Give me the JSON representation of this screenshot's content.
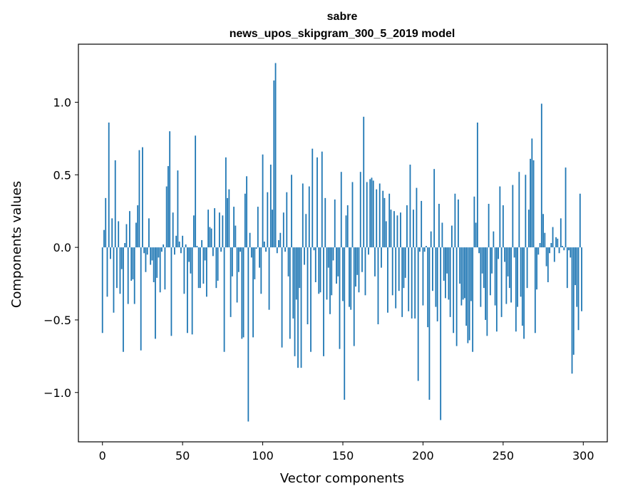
{
  "chart_data": {
    "type": "bar",
    "title": "sabre",
    "subtitle": "news_upos_skipgram_300_5_2019 model",
    "xlabel": "Vector components",
    "ylabel": "Components values",
    "xlim": [
      -15,
      315
    ],
    "ylim": [
      -1.34,
      1.4
    ],
    "xticks": [
      0,
      50,
      100,
      150,
      200,
      250,
      300
    ],
    "xtick_labels": [
      "0",
      "50",
      "100",
      "150",
      "200",
      "250",
      "300"
    ],
    "yticks": [
      -1.0,
      -0.5,
      0.0,
      0.5,
      1.0
    ],
    "ytick_labels": [
      "−1.0",
      "−0.5",
      "0.0",
      "0.5",
      "1.0"
    ],
    "bar_color": "#1f77b4",
    "grid": false,
    "values": [
      -0.59,
      0.12,
      0.34,
      -0.34,
      0.86,
      -0.08,
      0.2,
      -0.45,
      0.6,
      -0.28,
      0.18,
      -0.32,
      -0.15,
      -0.72,
      0.03,
      0.16,
      -0.39,
      0.25,
      -0.23,
      -0.22,
      -0.39,
      0.17,
      0.29,
      0.67,
      -0.71,
      0.69,
      -0.04,
      -0.17,
      -0.05,
      0.2,
      -0.12,
      -0.09,
      -0.24,
      -0.63,
      -0.21,
      -0.07,
      -0.31,
      -0.03,
      0.02,
      -0.29,
      0.42,
      0.56,
      0.8,
      -0.61,
      0.24,
      -0.05,
      0.08,
      0.53,
      0.04,
      -0.04,
      0.08,
      -0.32,
      0.02,
      -0.59,
      -0.1,
      -0.18,
      -0.6,
      0.22,
      0.77,
      0.01,
      -0.28,
      -0.28,
      0.05,
      -0.25,
      -0.09,
      -0.34,
      0.26,
      0.14,
      0.13,
      -0.06,
      0.27,
      -0.28,
      -0.23,
      0.24,
      -0.03,
      0.22,
      -0.72,
      0.62,
      0.34,
      0.4,
      -0.48,
      -0.2,
      0.28,
      0.15,
      -0.38,
      -0.17,
      -0.03,
      -0.63,
      -0.62,
      0.37,
      0.49,
      -1.2,
      0.1,
      -0.07,
      -0.62,
      -0.22,
      -0.01,
      0.28,
      -0.14,
      -0.32,
      0.64,
      0.04,
      -0.03,
      0.38,
      -0.43,
      0.57,
      0.26,
      1.15,
      1.27,
      -0.04,
      0.05,
      0.1,
      -0.69,
      0.24,
      -0.03,
      0.38,
      -0.2,
      -0.63,
      0.5,
      -0.49,
      -0.75,
      -0.36,
      -0.83,
      -0.28,
      -0.83,
      0.44,
      -0.12,
      0.23,
      -0.53,
      0.42,
      -0.72,
      0.68,
      -0.02,
      -0.24,
      0.62,
      -0.32,
      -0.31,
      0.66,
      -0.75,
      0.34,
      -0.36,
      -0.14,
      -0.46,
      -0.33,
      -0.09,
      0.33,
      -0.25,
      -0.2,
      -0.7,
      0.52,
      -0.37,
      -1.05,
      0.22,
      0.29,
      -0.41,
      -0.43,
      0.45,
      -0.68,
      -0.27,
      -0.19,
      -0.31,
      0.52,
      -0.17,
      0.9,
      -0.33,
      0.45,
      -0.05,
      0.47,
      0.48,
      0.46,
      -0.2,
      0.4,
      -0.53,
      0.44,
      -0.14,
      0.39,
      0.34,
      0.18,
      -0.45,
      0.37,
      0.26,
      -0.33,
      0.25,
      -0.42,
      0.22,
      -0.3,
      0.24,
      -0.48,
      -0.28,
      -0.21,
      0.29,
      -0.44,
      0.57,
      -0.49,
      0.26,
      -0.49,
      0.41,
      -0.92,
      -0.03,
      0.32,
      -0.4,
      -0.03,
      0.01,
      -0.55,
      -1.05,
      0.11,
      -0.3,
      0.54,
      -0.41,
      -0.51,
      0.3,
      -1.19,
      0.17,
      -0.23,
      -0.35,
      -0.18,
      -0.36,
      -0.48,
      0.15,
      -0.59,
      0.37,
      -0.68,
      0.33,
      -0.25,
      -0.4,
      -0.36,
      -0.35,
      -0.54,
      -0.66,
      -0.64,
      -0.37,
      -0.72,
      0.35,
      0.17,
      0.86,
      -0.04,
      -0.41,
      -0.18,
      -0.28,
      -0.5,
      -0.61,
      0.3,
      -0.33,
      -0.18,
      0.11,
      -0.4,
      -0.58,
      -0.08,
      0.42,
      -0.48,
      0.29,
      -0.1,
      -0.39,
      -0.2,
      -0.28,
      -0.38,
      0.43,
      -0.07,
      -0.58,
      -0.41,
      0.52,
      -0.34,
      -0.54,
      -0.63,
      0.5,
      -0.28,
      0.26,
      0.61,
      0.75,
      0.6,
      -0.59,
      -0.29,
      -0.05,
      0.03,
      0.99,
      0.23,
      0.1,
      -0.13,
      -0.24,
      -0.04,
      0.03,
      0.14,
      -0.1,
      0.07,
      0.06,
      -0.04,
      0.2,
      0.01,
      -0.02,
      0.55,
      -0.28,
      -0.02,
      -0.07,
      -0.87,
      -0.74,
      -0.26,
      -0.41,
      -0.57,
      0.37,
      -0.44
    ]
  }
}
